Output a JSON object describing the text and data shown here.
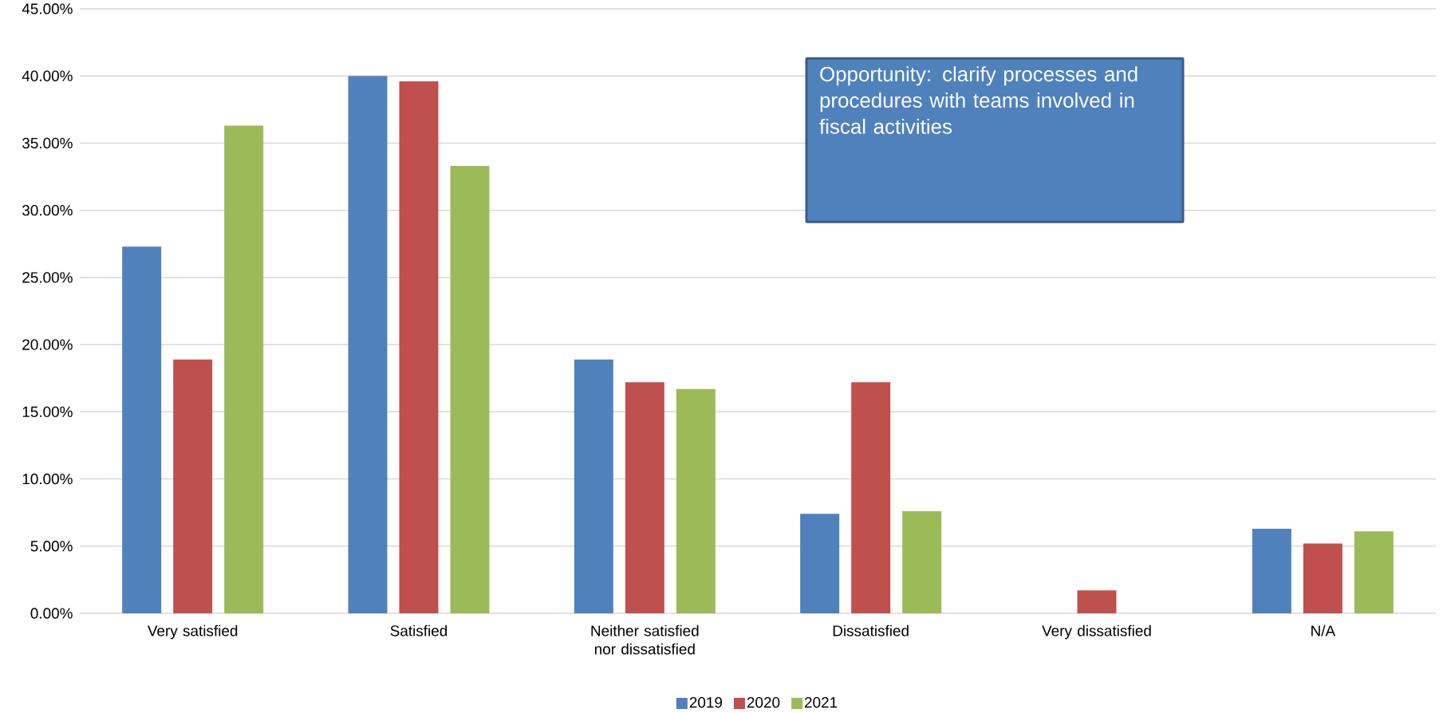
{
  "chart_data": {
    "type": "bar",
    "categories": [
      "Very satisfied",
      "Satisfied",
      "Neither satisfied nor dissatisfied",
      "Dissatisfied",
      "Very dissatisfied",
      "N/A"
    ],
    "series": [
      {
        "name": "2019",
        "color": "#4f81bd",
        "values": [
          27.3,
          40.0,
          18.9,
          7.4,
          0,
          6.3
        ]
      },
      {
        "name": "2020",
        "color": "#c0504d",
        "values": [
          18.9,
          39.6,
          17.2,
          17.2,
          1.7,
          5.2
        ]
      },
      {
        "name": "2021",
        "color": "#9bbb59",
        "values": [
          36.3,
          33.3,
          16.7,
          7.6,
          0,
          6.1
        ]
      }
    ],
    "ylim": [
      0,
      45
    ],
    "yticks": [
      {
        "value": 0,
        "label": "0.00%"
      },
      {
        "value": 5,
        "label": "5.00%"
      },
      {
        "value": 10,
        "label": "10.00%"
      },
      {
        "value": 15,
        "label": "15.00%"
      },
      {
        "value": 20,
        "label": "20.00%"
      },
      {
        "value": 25,
        "label": "25.00%"
      },
      {
        "value": 30,
        "label": "30.00%"
      },
      {
        "value": 35,
        "label": "35.00%"
      },
      {
        "value": 40,
        "label": "40.00%"
      },
      {
        "value": 45,
        "label": "45.00%"
      }
    ],
    "grid": "y",
    "legend": "bottom",
    "annotations": [
      "Opportunity: clarify processes and procedures with teams involved in fiscal activities"
    ]
  }
}
